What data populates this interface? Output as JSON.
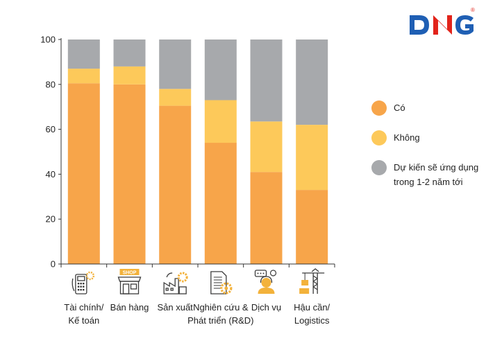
{
  "brand": {
    "logo_text": "DNG",
    "registered_mark": "®",
    "colors": {
      "blue": "#1f5fb4",
      "red": "#e2231a"
    }
  },
  "chart_data": {
    "type": "bar",
    "stacked": true,
    "categories": [
      "Tài chính/\nKế toán",
      "Bán hàng",
      "Sản xuất",
      "Nghiên cứu &\nPhát triển (R&D)",
      "Dịch vụ",
      "Hậu cần/\nLogistics"
    ],
    "series": [
      {
        "name": "Có",
        "color": "#f7a54a",
        "values": [
          80.5,
          80,
          70.5,
          54,
          41,
          33
        ]
      },
      {
        "name": "Không",
        "color": "#fdc95a",
        "values": [
          6.5,
          8,
          7.5,
          19,
          22.5,
          29
        ]
      },
      {
        "name": "Dự kiến sẽ ứng dụng\ntrong 1-2 năm tới",
        "color": "#a7a9ac",
        "values": [
          13,
          12,
          22,
          27,
          36.5,
          38
        ]
      }
    ],
    "ylim": [
      0,
      100
    ],
    "yticks": [
      "0",
      "20",
      "40",
      "60",
      "80",
      "100"
    ],
    "grid": false,
    "legend_position": "right",
    "category_icons": [
      "accounting-icon",
      "shop-icon",
      "factory-icon",
      "research-icon",
      "customer-service-icon",
      "logistics-crane-icon"
    ]
  }
}
